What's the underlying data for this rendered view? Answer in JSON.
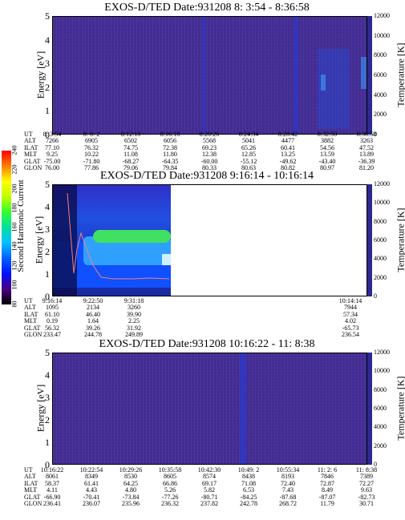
{
  "colors": {
    "background": "#3a3090",
    "green": "#40e060",
    "cyan": "#30c0ff",
    "blue": "#1030ff",
    "curve": "#f08080"
  },
  "colorbar": {
    "label": "Second Harmonic Current",
    "ticks": [
      "80",
      "100",
      "120",
      "140",
      "160",
      "180",
      "200",
      "220",
      "240"
    ],
    "colors": [
      "#000000",
      "#4a0080",
      "#0010ff",
      "#0060ff",
      "#00c0ff",
      "#00e0a0",
      "#30ff30",
      "#c0ff00",
      "#ffff00",
      "#ff8000",
      "#ff0000"
    ]
  },
  "panels": [
    {
      "title": "EXOS-D/TED   Date:931208   8: 3:54 - 8:36:58",
      "ylabel": "Energy [eV]",
      "rlabel": "Temperature [K]",
      "yticks": [
        "0",
        "1",
        "2",
        "3",
        "4",
        "5"
      ],
      "rticks": [
        "0",
        "2000",
        "4000",
        "6000",
        "8000",
        "10000",
        "12000"
      ],
      "row_labels": [
        "UT",
        "ALT",
        "ILAT",
        "MLT",
        "GLAT",
        "GLON"
      ],
      "columns": [
        [
          "8: 3:54",
          "7266",
          "77.10",
          "9.25",
          "-75.00",
          "76.00"
        ],
        [
          "8: 8: 2",
          "6905",
          "76.32",
          "10.22",
          "-71.80",
          "77.86"
        ],
        [
          "8:12:10",
          "6502",
          "74.75",
          "11.08",
          "-68.27",
          "79.06"
        ],
        [
          "8:16:18",
          "6056",
          "72.38",
          "11.80",
          "-64.35",
          "79.84"
        ],
        [
          "8:20:26",
          "5568",
          "69.23",
          "12.38",
          "-60.00",
          "80.33"
        ],
        [
          "8:24:34",
          "5041",
          "65.26",
          "12.85",
          "-55.12",
          "80.63"
        ],
        [
          "8:28:42",
          "4477",
          "60.41",
          "13.25",
          "-49.62",
          "80.82"
        ],
        [
          "8:32:50",
          "3882",
          "54.56",
          "13.59",
          "-43.40",
          "80.97"
        ],
        [
          "8:36:58",
          "3263",
          "47.52",
          "13.89",
          "-36.39",
          "81.20"
        ]
      ]
    },
    {
      "title": "EXOS-D/TED   Date:931208   9:16:14 - 10:16:14",
      "ylabel": "Energy [eV]",
      "rlabel": "Temperature [K]",
      "yticks": [
        "0",
        "1",
        "2",
        "3",
        "4",
        "5"
      ],
      "rticks": [
        "0",
        "2000",
        "4000",
        "6000",
        "8000",
        "10000",
        "12000"
      ],
      "row_labels": [
        "UT",
        "ALT",
        "ILAT",
        "MLT",
        "GLAT",
        "GLON"
      ],
      "columns": [
        [
          "9:16:14",
          "1095",
          "61.10",
          "0.19",
          "56.32",
          "233.47"
        ],
        [
          "9:22:50",
          "2134",
          "46.40",
          "1.64",
          "39.26",
          "244.78"
        ],
        [
          "9:31:18",
          "3260",
          "39.90",
          "2.25",
          "31.92",
          "249.89"
        ]
      ],
      "last_column": [
        "10:14:14",
        "7944",
        "57.34",
        "4.02",
        "-65.73",
        "236.54"
      ]
    },
    {
      "title": "EXOS-D/TED   Date:931208   10:16:22 - 11: 8:38",
      "ylabel": "Energy [eV]",
      "rlabel": "Temperature [K]",
      "yticks": [
        "0",
        "1",
        "2",
        "3",
        "4",
        "5"
      ],
      "rticks": [
        "0",
        "2000",
        "4000",
        "6000",
        "8000",
        "10000",
        "12000"
      ],
      "row_labels": [
        "UT",
        "ALT",
        "ILAT",
        "MLT",
        "GLAT",
        "GLON"
      ],
      "columns": [
        [
          "10:16:22",
          "8061",
          "58.37",
          "4.11",
          "-66.90",
          "236.41"
        ],
        [
          "10:22:54",
          "8349",
          "61.41",
          "4.43",
          "-70.41",
          "236.07"
        ],
        [
          "10:29:26",
          "8530",
          "64.25",
          "4.80",
          "-73.84",
          "235.96"
        ],
        [
          "10:35:58",
          "8605",
          "66.86",
          "5.26",
          "-77.26",
          "236.32"
        ],
        [
          "10:42:30",
          "8574",
          "69.17",
          "5.82",
          "-80.71",
          "237.82"
        ],
        [
          "10:49: 2",
          "8438",
          "71.08",
          "6.53",
          "-84.25",
          "242.78"
        ],
        [
          "10:55:34",
          "8193",
          "72.40",
          "7.43",
          "-87.68",
          "268.72"
        ],
        [
          "11: 2: 6",
          "7846",
          "72.87",
          "8.49",
          "-87.07",
          "11.79"
        ],
        [
          "11: 8:38",
          "7389",
          "72.27",
          "9.63",
          "-82.73",
          "30.71"
        ]
      ]
    }
  ],
  "chart_data": {
    "type": "heatmap",
    "xlabel": "UT",
    "ylabel": "Energy [eV]",
    "ylim": [
      0,
      5
    ],
    "y2label": "Temperature [K]",
    "y2lim": [
      0,
      12000
    ],
    "colorbar_label": "Second Harmonic Current",
    "colorbar_range": [
      80,
      240
    ]
  }
}
